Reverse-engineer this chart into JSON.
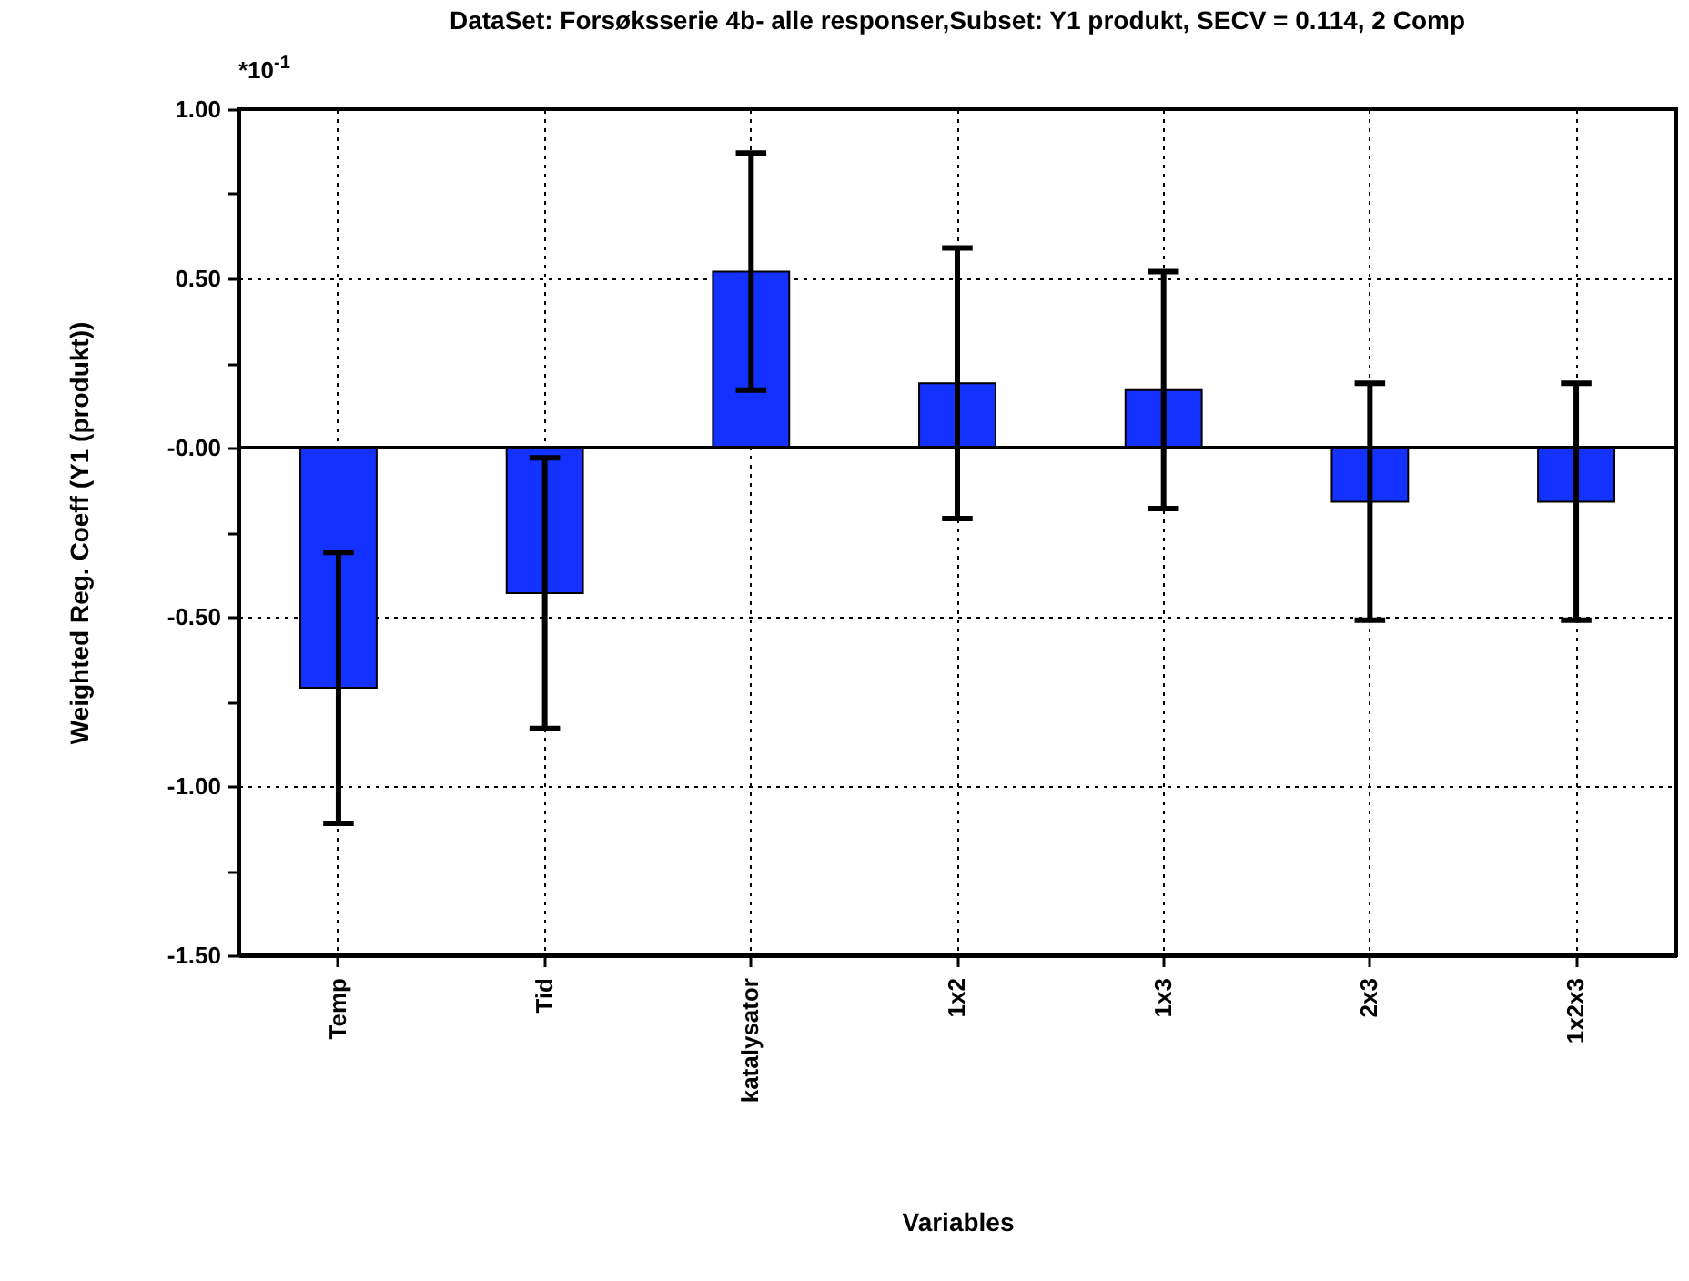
{
  "chart_data": {
    "type": "bar",
    "title": "DataSet: Forsøksserie 4b- alle responser,Subset: Y1 produkt, SECV = 0.114, 2 Comp",
    "xlabel": "Variables",
    "ylabel": "Weighted Reg. Coeff (Y1 (produkt))",
    "annotations": [
      "*10$^{-1}$"
    ],
    "categories": [
      "Temp",
      "Tid",
      "katalysator",
      "1x2",
      "1x3",
      "2x3",
      "1x2x3"
    ],
    "values": [
      -0.71,
      -0.43,
      0.52,
      0.19,
      0.17,
      -0.16,
      -0.16
    ],
    "errors": [
      0.4,
      0.4,
      0.35,
      0.4,
      0.35,
      0.35,
      0.35
    ],
    "color": "#1432ff",
    "ylim": [
      -1.5,
      1.0
    ],
    "yticks": [
      "1.00",
      {
        "value": 0.75,
        "label": null
      },
      {
        "value": 0.5,
        "label": "0.50"
      },
      {
        "value": 0.25,
        "label": null
      },
      {
        "value": 0,
        "label": "-0.00"
      },
      {
        "value": -0.25,
        "label": null
      },
      {
        "value": -0.5,
        "label": "-0.50"
      },
      {
        "value": -0.75,
        "label": null
      },
      {
        "value": -1,
        "label": "-1.00"
      },
      {
        "value": -1.25,
        "label": null
      },
      {
        "value": -1.5,
        "label": "-1.50"
      }
    ],
    "ref_lines": [
      {
        "axis": "y",
        "value": 0
      }
    ],
    "grid": true
  }
}
